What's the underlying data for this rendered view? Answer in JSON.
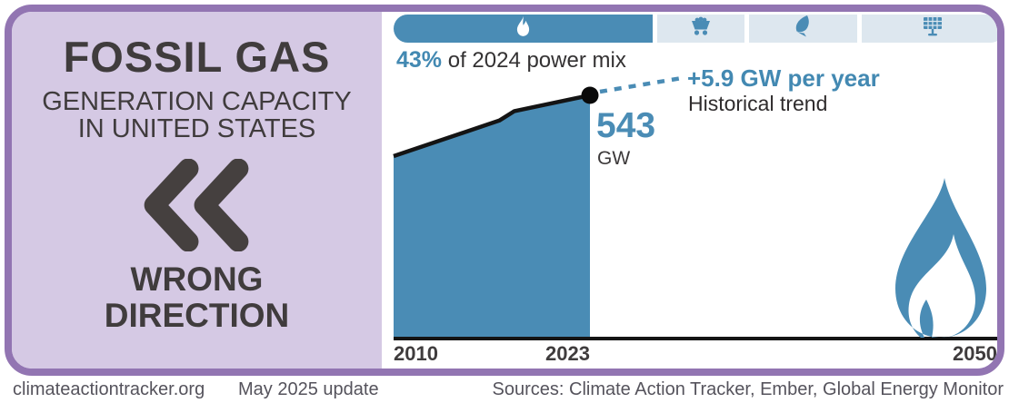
{
  "card": {
    "left_panel": {
      "title": "FOSSIL GAS",
      "subtitle_line1": "GENERATION CAPACITY",
      "subtitle_line2": "IN UNITED STATES",
      "direction_line1": "WRONG",
      "direction_line2": "DIRECTION",
      "direction_icon": "double-chevron-left-icon"
    },
    "power_mix_bar": {
      "segments": [
        {
          "icon": "gas-flame-icon",
          "active": true,
          "share_pct_2024": 43
        },
        {
          "icon": "coal-cart-icon",
          "active": false
        },
        {
          "icon": "leaf-icon",
          "active": false
        },
        {
          "icon": "solar-panel-icon",
          "active": false
        }
      ],
      "caption_value": "43%",
      "caption_rest": " of 2024 power mix"
    },
    "annotations": {
      "end_value": "543",
      "end_unit": "GW",
      "trend": "+5.9 GW per year",
      "trend_sub": "Historical trend"
    }
  },
  "chart_data": {
    "type": "area",
    "title": "Fossil gas generation capacity in United States",
    "series": [
      {
        "name": "Fossil gas capacity (GW)",
        "x": [
          2010,
          2017,
          2018,
          2023
        ],
        "values": [
          466,
          511,
          523,
          543
        ]
      }
    ],
    "unit": "GW",
    "end_label": {
      "year": 2023,
      "value": 543,
      "unit": "GW"
    },
    "trend_annotation": "+5.9 GW per year",
    "trend_annotation_sub": "Historical trend",
    "power_mix_caption": "43% of 2024 power mix",
    "x_axis_ticks": [
      "2010",
      "2023",
      "2050"
    ],
    "x_range": [
      2010,
      2050
    ],
    "grid": false,
    "legend": false,
    "colors": {
      "area_fill": "#4a8cb5",
      "line": "#141414",
      "trend_dash": "#4a8cb5"
    }
  },
  "footer": {
    "site": "climateactiontracker.org",
    "update": "May 2025 update",
    "sources": "Sources: Climate Action Tracker, Ember, Global Energy Monitor"
  },
  "colors": {
    "border_purple": "#9275b2",
    "panel_lavender": "#d5c9e4",
    "accent_blue": "#4a8cb5",
    "segment_light": "#dde7ef",
    "dark_text": "#403c3d"
  }
}
